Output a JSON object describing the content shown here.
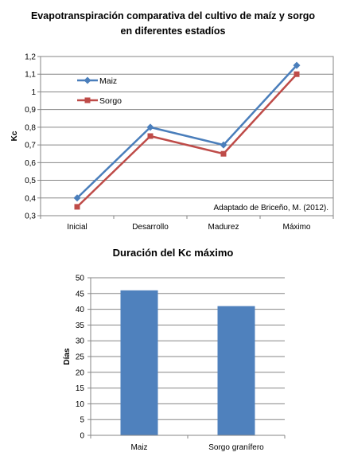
{
  "chart_data": [
    {
      "type": "line",
      "title_line1": "Evapotranspiración comparativa del cultivo de maíz y sorgo",
      "title_line2": "en diferentes estadíos",
      "categories": [
        "Inicial",
        "Desarrollo",
        "Madurez",
        "Máximo"
      ],
      "series": [
        {
          "name": "Maiz",
          "values": [
            0.4,
            0.8,
            0.7,
            1.15
          ],
          "color": "#4a7ebb",
          "marker": "diamond"
        },
        {
          "name": "Sorgo",
          "values": [
            0.35,
            0.75,
            0.65,
            1.1
          ],
          "color": "#be4b48",
          "marker": "square"
        }
      ],
      "ylabel": "Kc",
      "ylim": [
        0.3,
        1.2
      ],
      "yticks": [
        0.3,
        0.4,
        0.5,
        0.6,
        0.7,
        0.8,
        0.9,
        1.0,
        1.1,
        1.2
      ],
      "ytick_labels": [
        "0,3",
        "0,4",
        "0,5",
        "0,6",
        "0,7",
        "0,8",
        "0,9",
        "1",
        "1,1",
        "1,2"
      ],
      "grid": true,
      "legend": "top-left",
      "annotation": "Adaptado de Briceño,  M. (2012)."
    },
    {
      "type": "bar",
      "title": "Duración del Kc máximo",
      "categories": [
        "Maiz",
        "Sorgo granífero"
      ],
      "values": [
        46,
        41
      ],
      "color": "#4f81bd",
      "ylabel": "Días",
      "ylim": [
        0,
        50
      ],
      "yticks": [
        0,
        5,
        10,
        15,
        20,
        25,
        30,
        35,
        40,
        45,
        50
      ],
      "grid": true
    }
  ]
}
